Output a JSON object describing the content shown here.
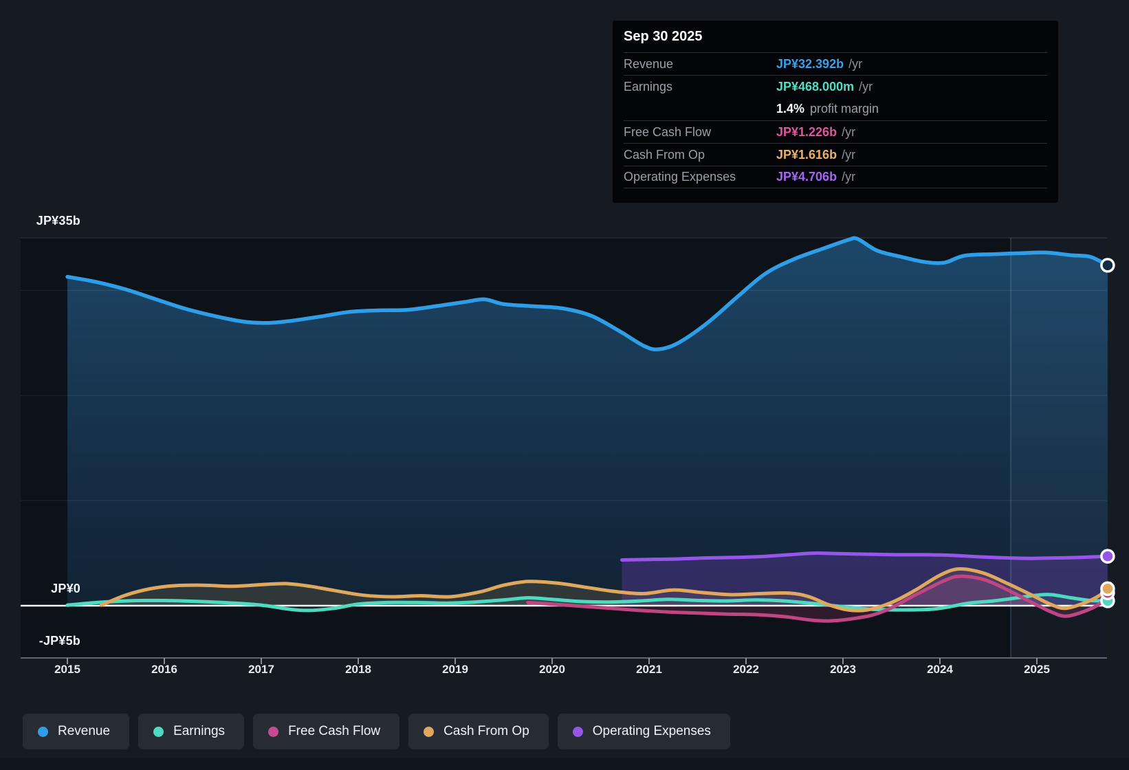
{
  "tooltip": {
    "date": "Sep 30 2025",
    "rows": [
      {
        "id": "revenue",
        "label": "Revenue",
        "value": "JP¥32.392b",
        "suffix": "/yr",
        "color": "#3aa2ec"
      },
      {
        "id": "earnings",
        "label": "Earnings",
        "value": "JP¥468.000m",
        "suffix": "/yr",
        "color": "#52dcc2",
        "sub": {
          "strong": "1.4%",
          "text": "profit margin"
        }
      },
      {
        "id": "free-cash-flow",
        "label": "Free Cash Flow",
        "value": "JP¥1.226b",
        "suffix": "/yr",
        "color": "#e0559e"
      },
      {
        "id": "cash-from-op",
        "label": "Cash From Op",
        "value": "JP¥1.616b",
        "suffix": "/yr",
        "color": "#ecb268"
      },
      {
        "id": "operating-expenses",
        "label": "Operating Expenses",
        "value": "JP¥4.706b",
        "suffix": "/yr",
        "color": "#a765f5"
      }
    ]
  },
  "legend": [
    {
      "id": "revenue",
      "label": "Revenue",
      "color": "#2f9ee8"
    },
    {
      "id": "earnings",
      "label": "Earnings",
      "color": "#4ed9c1"
    },
    {
      "id": "free-cash-flow",
      "label": "Free Cash Flow",
      "color": "#c74b90"
    },
    {
      "id": "cash-from-op",
      "label": "Cash From Op",
      "color": "#dfa85c"
    },
    {
      "id": "operating-expenses",
      "label": "Operating Expenses",
      "color": "#9756ea"
    }
  ],
  "chart_data": {
    "type": "line",
    "unit": "JP¥ billions",
    "x_unit": "year",
    "xlim": [
      2014.52,
      2025.73
    ],
    "ylim": [
      -5,
      35
    ],
    "x_ticks": [
      2015,
      2016,
      2017,
      2018,
      2019,
      2020,
      2021,
      2022,
      2023,
      2024,
      2025
    ],
    "y_axis_labels": [
      {
        "text": "JP¥35b",
        "value": 35
      },
      {
        "text": "JP¥0",
        "value": 0
      },
      {
        "text": "-JP¥5b",
        "value": -5
      }
    ],
    "gridline_values": [
      35,
      30,
      20,
      10
    ],
    "zero_line_value": 0,
    "forecast_band_start": 2024.73,
    "grid_on": true,
    "legend_position": "bottom",
    "series": [
      {
        "name": "Revenue",
        "color": "#2f9ee8",
        "marker_fill": "#0f2c44",
        "area_fill": "revenue-gradient",
        "points": [
          [
            2015,
            31.3
          ],
          [
            2015.3,
            30.8
          ],
          [
            2015.6,
            30.1
          ],
          [
            2015.9,
            29.2
          ],
          [
            2016.2,
            28.3
          ],
          [
            2016.5,
            27.6
          ],
          [
            2016.8,
            27.05
          ],
          [
            2017.05,
            26.9
          ],
          [
            2017.3,
            27.1
          ],
          [
            2017.6,
            27.5
          ],
          [
            2017.9,
            27.95
          ],
          [
            2018.2,
            28.1
          ],
          [
            2018.5,
            28.15
          ],
          [
            2018.8,
            28.5
          ],
          [
            2019.1,
            28.9
          ],
          [
            2019.3,
            29.15
          ],
          [
            2019.5,
            28.7
          ],
          [
            2019.8,
            28.5
          ],
          [
            2020.1,
            28.3
          ],
          [
            2020.4,
            27.6
          ],
          [
            2020.7,
            26.1
          ],
          [
            2020.95,
            24.7
          ],
          [
            2021.1,
            24.4
          ],
          [
            2021.3,
            25.0
          ],
          [
            2021.6,
            26.9
          ],
          [
            2021.9,
            29.3
          ],
          [
            2022.2,
            31.6
          ],
          [
            2022.5,
            33.0
          ],
          [
            2022.8,
            34.0
          ],
          [
            2023.05,
            34.8
          ],
          [
            2023.15,
            34.9
          ],
          [
            2023.35,
            33.8
          ],
          [
            2023.6,
            33.2
          ],
          [
            2023.85,
            32.7
          ],
          [
            2024.05,
            32.65
          ],
          [
            2024.25,
            33.3
          ],
          [
            2024.55,
            33.45
          ],
          [
            2024.85,
            33.55
          ],
          [
            2025.1,
            33.6
          ],
          [
            2025.35,
            33.35
          ],
          [
            2025.55,
            33.2
          ],
          [
            2025.73,
            32.392
          ]
        ]
      },
      {
        "name": "Earnings",
        "color": "#4ed9c1",
        "marker_fill": "#4ed9c1",
        "area_fill": "rgba(80,215,190,0.12)",
        "points": [
          [
            2015,
            0.05
          ],
          [
            2015.3,
            0.3
          ],
          [
            2015.6,
            0.45
          ],
          [
            2015.9,
            0.5
          ],
          [
            2016.2,
            0.45
          ],
          [
            2016.5,
            0.35
          ],
          [
            2016.8,
            0.2
          ],
          [
            2017.05,
            0.0
          ],
          [
            2017.3,
            -0.35
          ],
          [
            2017.5,
            -0.45
          ],
          [
            2017.75,
            -0.25
          ],
          [
            2018,
            0.15
          ],
          [
            2018.3,
            0.3
          ],
          [
            2018.6,
            0.3
          ],
          [
            2018.9,
            0.25
          ],
          [
            2019.2,
            0.35
          ],
          [
            2019.5,
            0.55
          ],
          [
            2019.75,
            0.75
          ],
          [
            2020,
            0.6
          ],
          [
            2020.3,
            0.4
          ],
          [
            2020.6,
            0.35
          ],
          [
            2020.9,
            0.45
          ],
          [
            2021.2,
            0.6
          ],
          [
            2021.5,
            0.5
          ],
          [
            2021.8,
            0.45
          ],
          [
            2022.1,
            0.55
          ],
          [
            2022.4,
            0.45
          ],
          [
            2022.7,
            0.2
          ],
          [
            2023,
            -0.1
          ],
          [
            2023.3,
            -0.35
          ],
          [
            2023.6,
            -0.4
          ],
          [
            2023.9,
            -0.35
          ],
          [
            2024.1,
            -0.1
          ],
          [
            2024.3,
            0.25
          ],
          [
            2024.55,
            0.45
          ],
          [
            2024.8,
            0.75
          ],
          [
            2025.0,
            1.0
          ],
          [
            2025.15,
            1.05
          ],
          [
            2025.35,
            0.75
          ],
          [
            2025.55,
            0.5
          ],
          [
            2025.73,
            0.468
          ]
        ]
      },
      {
        "name": "Free Cash Flow",
        "color": "#bf4584",
        "marker_fill": "#bf4584",
        "area_fill": "rgba(205,75,140,0.18)",
        "points": [
          [
            2019.75,
            0.3
          ],
          [
            2020,
            0.15
          ],
          [
            2020.3,
            -0.05
          ],
          [
            2020.6,
            -0.25
          ],
          [
            2020.9,
            -0.45
          ],
          [
            2021.2,
            -0.6
          ],
          [
            2021.5,
            -0.7
          ],
          [
            2021.8,
            -0.8
          ],
          [
            2022.1,
            -0.85
          ],
          [
            2022.4,
            -1.05
          ],
          [
            2022.65,
            -1.35
          ],
          [
            2022.85,
            -1.45
          ],
          [
            2023.05,
            -1.3
          ],
          [
            2023.3,
            -0.9
          ],
          [
            2023.5,
            -0.2
          ],
          [
            2023.7,
            0.8
          ],
          [
            2023.85,
            1.5
          ],
          [
            2024.05,
            2.4
          ],
          [
            2024.2,
            2.8
          ],
          [
            2024.45,
            2.5
          ],
          [
            2024.7,
            1.5
          ],
          [
            2024.95,
            0.3
          ],
          [
            2025.15,
            -0.6
          ],
          [
            2025.3,
            -1.0
          ],
          [
            2025.5,
            -0.5
          ],
          [
            2025.65,
            0.2
          ],
          [
            2025.73,
            1.226
          ]
        ]
      },
      {
        "name": "Cash From Op",
        "color": "#dfa85c",
        "marker_fill": "#dfa85c",
        "area_fill": "rgba(200,160,80,0.16)",
        "points": [
          [
            2015.35,
            0.05
          ],
          [
            2015.6,
            1.0
          ],
          [
            2015.85,
            1.6
          ],
          [
            2016.1,
            1.9
          ],
          [
            2016.4,
            1.95
          ],
          [
            2016.7,
            1.85
          ],
          [
            2017,
            2.0
          ],
          [
            2017.25,
            2.1
          ],
          [
            2017.5,
            1.85
          ],
          [
            2017.75,
            1.45
          ],
          [
            2018.05,
            1.0
          ],
          [
            2018.35,
            0.85
          ],
          [
            2018.65,
            0.95
          ],
          [
            2018.95,
            0.85
          ],
          [
            2019.25,
            1.3
          ],
          [
            2019.5,
            1.95
          ],
          [
            2019.75,
            2.3
          ],
          [
            2020.05,
            2.15
          ],
          [
            2020.35,
            1.75
          ],
          [
            2020.65,
            1.35
          ],
          [
            2020.95,
            1.15
          ],
          [
            2021.25,
            1.5
          ],
          [
            2021.55,
            1.25
          ],
          [
            2021.85,
            1.05
          ],
          [
            2022.15,
            1.15
          ],
          [
            2022.45,
            1.2
          ],
          [
            2022.65,
            0.85
          ],
          [
            2022.85,
            0.1
          ],
          [
            2023.05,
            -0.4
          ],
          [
            2023.25,
            -0.4
          ],
          [
            2023.5,
            0.3
          ],
          [
            2023.75,
            1.5
          ],
          [
            2024,
            2.9
          ],
          [
            2024.2,
            3.5
          ],
          [
            2024.45,
            3.1
          ],
          [
            2024.7,
            2.1
          ],
          [
            2024.95,
            1.0
          ],
          [
            2025.15,
            0.1
          ],
          [
            2025.3,
            -0.25
          ],
          [
            2025.5,
            0.3
          ],
          [
            2025.65,
            1.0
          ],
          [
            2025.73,
            1.616
          ]
        ]
      },
      {
        "name": "Operating Expenses",
        "color": "#9756ea",
        "marker_fill": "#9756ea",
        "area_fill": "rgba(130,70,210,0.28)",
        "points": [
          [
            2020.72,
            4.35
          ],
          [
            2021,
            4.4
          ],
          [
            2021.3,
            4.45
          ],
          [
            2021.6,
            4.55
          ],
          [
            2021.9,
            4.6
          ],
          [
            2022.2,
            4.7
          ],
          [
            2022.45,
            4.85
          ],
          [
            2022.7,
            5.0
          ],
          [
            2022.95,
            4.95
          ],
          [
            2023.25,
            4.9
          ],
          [
            2023.55,
            4.85
          ],
          [
            2023.8,
            4.85
          ],
          [
            2024.1,
            4.8
          ],
          [
            2024.4,
            4.65
          ],
          [
            2024.7,
            4.55
          ],
          [
            2024.95,
            4.5
          ],
          [
            2025.2,
            4.55
          ],
          [
            2025.45,
            4.6
          ],
          [
            2025.73,
            4.706
          ]
        ]
      }
    ]
  }
}
